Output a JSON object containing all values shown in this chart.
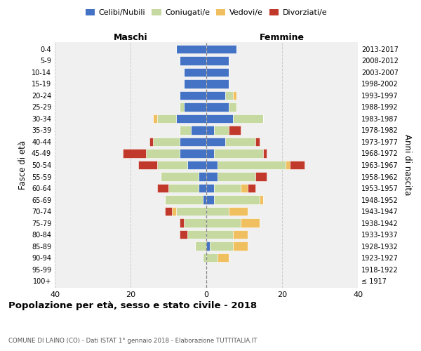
{
  "age_groups": [
    "100+",
    "95-99",
    "90-94",
    "85-89",
    "80-84",
    "75-79",
    "70-74",
    "65-69",
    "60-64",
    "55-59",
    "50-54",
    "45-49",
    "40-44",
    "35-39",
    "30-34",
    "25-29",
    "20-24",
    "15-19",
    "10-14",
    "5-9",
    "0-4"
  ],
  "birth_years": [
    "≤ 1917",
    "1918-1922",
    "1923-1927",
    "1928-1932",
    "1933-1937",
    "1938-1942",
    "1943-1947",
    "1948-1952",
    "1953-1957",
    "1958-1962",
    "1963-1967",
    "1968-1972",
    "1973-1977",
    "1978-1982",
    "1983-1987",
    "1988-1992",
    "1993-1997",
    "1998-2002",
    "2003-2007",
    "2008-2012",
    "2013-2017"
  ],
  "colors": {
    "celibi": "#4472c4",
    "coniugati": "#c5d9a0",
    "vedovi": "#f0c060",
    "divorziati": "#c0392b"
  },
  "maschi": {
    "celibi": [
      0,
      0,
      0,
      0,
      0,
      0,
      0,
      1,
      2,
      2,
      5,
      7,
      7,
      4,
      8,
      6,
      7,
      6,
      6,
      7,
      8
    ],
    "coniugati": [
      0,
      0,
      1,
      3,
      5,
      6,
      8,
      10,
      8,
      10,
      8,
      9,
      7,
      3,
      5,
      1,
      0,
      0,
      0,
      0,
      0
    ],
    "vedovi": [
      0,
      0,
      0,
      0,
      0,
      0,
      1,
      0,
      0,
      0,
      0,
      0,
      0,
      0,
      1,
      0,
      0,
      0,
      0,
      0,
      0
    ],
    "divorziati": [
      0,
      0,
      0,
      0,
      2,
      1,
      2,
      0,
      3,
      0,
      5,
      6,
      1,
      0,
      0,
      0,
      0,
      0,
      0,
      0,
      0
    ]
  },
  "femmine": {
    "celibi": [
      0,
      0,
      0,
      1,
      0,
      0,
      0,
      2,
      2,
      3,
      3,
      2,
      5,
      2,
      7,
      6,
      5,
      6,
      6,
      6,
      8
    ],
    "coniugati": [
      0,
      0,
      3,
      6,
      7,
      9,
      6,
      12,
      7,
      10,
      18,
      13,
      8,
      4,
      8,
      2,
      2,
      0,
      0,
      0,
      0
    ],
    "vedovi": [
      0,
      0,
      3,
      4,
      4,
      5,
      5,
      1,
      2,
      0,
      1,
      0,
      0,
      0,
      0,
      0,
      1,
      0,
      0,
      0,
      0
    ],
    "divorziati": [
      0,
      0,
      0,
      0,
      0,
      0,
      0,
      0,
      2,
      3,
      4,
      1,
      1,
      3,
      0,
      0,
      0,
      0,
      0,
      0,
      0
    ]
  },
  "xlim": 40,
  "title": "Popolazione per età, sesso e stato civile - 2018",
  "subtitle": "COMUNE DI LAINO (CO) - Dati ISTAT 1° gennaio 2018 - Elaborazione TUTTITALIA.IT",
  "ylabel": "Fasce di età",
  "ylabel_right": "Anni di nascita",
  "xlabel_left": "Maschi",
  "xlabel_right": "Femmine",
  "legend_labels": [
    "Celibi/Nubili",
    "Coniugati/e",
    "Vedovi/e",
    "Divorziati/e"
  ],
  "grid_color": "#cccccc"
}
